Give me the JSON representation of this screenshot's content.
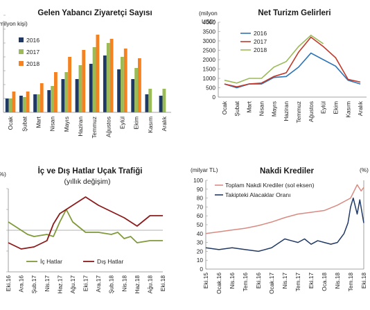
{
  "chart_data": [
    {
      "id": "visitors",
      "type": "bar",
      "title": "Gelen Yabancı Ziyaretçi Sayısı",
      "ylabel": "(milyon kişi)",
      "categories": [
        "Ocak",
        "Şubat",
        "Mart",
        "Nisan",
        "Mayıs",
        "Haziran",
        "Temmuz",
        "Ağustos",
        "Eylül",
        "Ekim",
        "Kasım",
        "Aralık"
      ],
      "ylim": [
        0,
        7
      ],
      "grid": false,
      "legend_position": "top-left",
      "series": [
        {
          "name": "2016",
          "color": "#1f3864",
          "values": [
            1.0,
            1.2,
            1.3,
            1.6,
            2.4,
            2.4,
            3.5,
            4.1,
            3.1,
            2.4,
            1.3,
            1.2
          ]
        },
        {
          "name": "2017",
          "color": "#9bbb59",
          "values": [
            1.0,
            1.1,
            1.3,
            1.9,
            2.9,
            3.4,
            4.7,
            5.0,
            4.0,
            3.2,
            1.7,
            1.7
          ]
        },
        {
          "name": "2018",
          "color": "#f58220",
          "values": [
            1.5,
            1.5,
            2.1,
            2.9,
            4.0,
            4.5,
            5.6,
            5.3,
            4.6,
            3.9,
            null,
            null
          ]
        }
      ]
    },
    {
      "id": "tourism",
      "type": "line",
      "title": "Net Turizm Gelirleri",
      "ylabel": "(milyon USD)",
      "categories": [
        "Ocak",
        "Şubat",
        "Mart",
        "Nisan",
        "Mayıs",
        "Haziran",
        "Temmuz",
        "Ağustos",
        "Eylül",
        "Ekim",
        "Kasım",
        "Aralık"
      ],
      "ylim": [
        0,
        4000
      ],
      "yticks": [
        0,
        500,
        1000,
        1500,
        2000,
        2500,
        3000,
        3500,
        4000
      ],
      "grid": false,
      "legend_position": "top-left",
      "series": [
        {
          "name": "2016",
          "color": "#2e75b6",
          "values": [
            700,
            500,
            700,
            700,
            1050,
            1100,
            1600,
            2350,
            2000,
            1650,
            900,
            700
          ]
        },
        {
          "name": "2017",
          "color": "#c0392b",
          "values": [
            700,
            550,
            700,
            750,
            1100,
            1300,
            2400,
            3200,
            2700,
            2100,
            950,
            800
          ]
        },
        {
          "name": "2018",
          "color": "#9bbb59",
          "values": [
            900,
            750,
            1000,
            1000,
            1600,
            1900,
            2700,
            3300,
            2850,
            null,
            null,
            null
          ]
        }
      ]
    },
    {
      "id": "airtraffic",
      "type": "line",
      "title": "İç ve Dış Hatlar Uçak Trafiği",
      "subtitle": "(yıllık değişim)",
      "ylabel": "(%)",
      "categories": [
        "Eki.16",
        "Ara.16",
        "Şub.17",
        "Nis.17",
        "Haz.17",
        "Ağu.17",
        "Eki.17",
        "Ara.17",
        "Şub.18",
        "Nis.18",
        "Haz.18",
        "Ağu.18",
        "Eki.18"
      ],
      "ylim": [
        -20,
        20
      ],
      "grid": false,
      "legend_position": "bottom",
      "series": [
        {
          "name": "İç Hatlar",
          "color": "#7f9a3a",
          "x": [
            0,
            1,
            1.5,
            2,
            3,
            3.5,
            4,
            4.5,
            5,
            6,
            7,
            8,
            8.5,
            9,
            9.5,
            10,
            11,
            12
          ],
          "values": [
            4,
            0,
            -2,
            -3,
            -2,
            -3,
            4,
            10,
            4,
            -1,
            -1,
            -2,
            -1,
            -4,
            -3,
            -6,
            -5,
            -5
          ]
        },
        {
          "name": "Dış Hatlar",
          "color": "#8b1a1a",
          "x": [
            0,
            1,
            2,
            3,
            3.5,
            4,
            4.5,
            5,
            6,
            7,
            8,
            9,
            10,
            11,
            12
          ],
          "values": [
            -6,
            -9,
            -8,
            -5,
            3,
            8,
            10,
            12,
            16,
            12,
            9,
            6,
            2,
            7,
            7
          ]
        }
      ]
    },
    {
      "id": "credit",
      "type": "line",
      "title": "Nakdi Krediler",
      "ylabel": "(milyar TL)",
      "y2label": "(%)",
      "categories": [
        "Eki.15",
        "Ocak.16",
        "Nis.16",
        "Tem.16",
        "Eki.16",
        "Ocak.17",
        "Nis.17",
        "Tem.17",
        "Eki.17",
        "Oca.18",
        "Nis.18",
        "Tem.18",
        "Eki.18"
      ],
      "ylim": [
        0,
        100
      ],
      "yticks": [
        0,
        10,
        20,
        30,
        40,
        50,
        60,
        70,
        80,
        90,
        100
      ],
      "grid": false,
      "legend_position": "top-left",
      "series": [
        {
          "name": "Toplam Nakdi Krediler (sol eksen)",
          "color": "#d98a80",
          "x": [
            0,
            1,
            2,
            3,
            4,
            5,
            6,
            7,
            8,
            9,
            10,
            11,
            11.5,
            11.8,
            12
          ],
          "values": [
            40,
            42,
            44,
            46,
            49,
            53,
            58,
            62,
            64,
            66,
            72,
            80,
            95,
            88,
            92
          ]
        },
        {
          "name": "Takipteki Alacaklar Oranı",
          "color": "#1f3864",
          "x": [
            0,
            1,
            2,
            3,
            4,
            5,
            6,
            6.5,
            7,
            7.5,
            8,
            8.5,
            9,
            9.5,
            10,
            10.5,
            10.8,
            11,
            11.2,
            11.5,
            11.7,
            12
          ],
          "values": [
            24,
            22,
            24,
            22,
            20,
            24,
            34,
            32,
            30,
            34,
            28,
            32,
            30,
            28,
            30,
            40,
            52,
            70,
            80,
            62,
            78,
            52
          ]
        }
      ]
    }
  ]
}
